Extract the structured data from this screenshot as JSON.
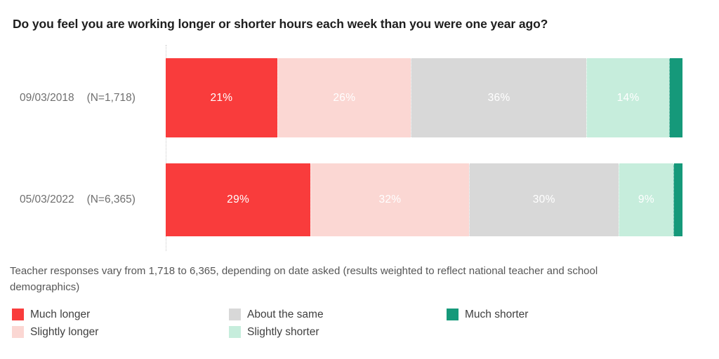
{
  "title": "Do you feel you are working longer or shorter hours each week than you were one year ago?",
  "footnote": "Teacher responses vary from 1,718 to 6,365, depending on date asked (results weighted to reflect national teacher and school demographics)",
  "colors": {
    "much_longer": "#f93c3c",
    "slightly_longer": "#fbd7d3",
    "about_the_same": "#d8d8d8",
    "slightly_shorter": "#c6eddc",
    "much_shorter": "#15997a",
    "title_text": "#1e1e1e",
    "category_text": "#6f6f6f",
    "footnote_text": "#565656",
    "legend_text": "#3f3f3f"
  },
  "chart_data": {
    "type": "bar",
    "variant": "horizontal-stacked",
    "title": "Do you feel you are working longer or shorter hours each week than you were one year ago?",
    "categories": [
      {
        "date": "09/03/2018",
        "n": "(N=1,718)"
      },
      {
        "date": "05/03/2022",
        "n": "(N=6,365)"
      }
    ],
    "series": [
      {
        "name": "Much longer",
        "color": "#f93c3c",
        "values": [
          21,
          29
        ],
        "labeled": true
      },
      {
        "name": "Slightly longer",
        "color": "#fbd7d3",
        "values": [
          26,
          32
        ],
        "labeled": true
      },
      {
        "name": "About the same",
        "color": "#d8d8d8",
        "values": [
          36,
          30
        ],
        "labeled": true
      },
      {
        "name": "Slightly shorter",
        "color": "#c6eddc",
        "values": [
          14,
          9
        ],
        "labeled": true
      },
      {
        "name": "Much shorter",
        "color": "#15997a",
        "values": [
          3,
          2
        ],
        "labeled": false
      }
    ],
    "value_suffix": "%",
    "axis": {
      "x_range": [
        0,
        100
      ],
      "gridlines": false
    },
    "legend_position": "bottom-left",
    "legend_order": [
      "Much longer",
      "Slightly longer",
      "About the same",
      "Slightly shorter",
      "Much shorter"
    ]
  }
}
